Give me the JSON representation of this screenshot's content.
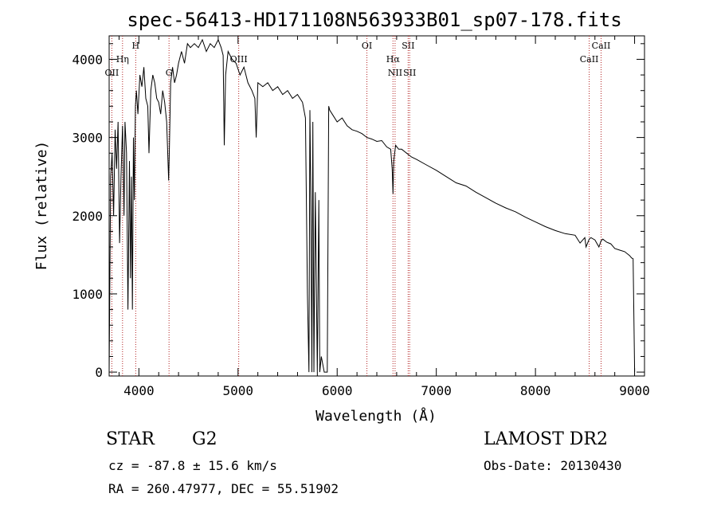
{
  "chart_data": {
    "type": "line",
    "title": "spec-56413-HD171108N563933B01_sp07-178.fits",
    "xlabel": "Wavelength (Å)",
    "ylabel": "Flux (relative)",
    "xlim": [
      3700,
      9100
    ],
    "ylim": [
      -50,
      4300
    ],
    "xticks": [
      4000,
      5000,
      6000,
      7000,
      8000,
      9000
    ],
    "yticks": [
      0,
      1000,
      2000,
      3000,
      4000
    ],
    "grid": false,
    "line_color": "#000000",
    "marker_color": "#b22222",
    "series": [
      {
        "x": [
          3700,
          3715,
          3730,
          3745,
          3760,
          3775,
          3790,
          3805,
          3820,
          3835,
          3850,
          3860,
          3875,
          3890,
          3905,
          3915,
          3925,
          3935,
          3945,
          3955,
          3965,
          3975,
          3990,
          4010,
          4030,
          4050,
          4070,
          4090,
          4102,
          4120,
          4140,
          4160,
          4180,
          4200,
          4220,
          4240,
          4260,
          4280,
          4300,
          4308,
          4320,
          4340,
          4360,
          4380,
          4400,
          4430,
          4460,
          4490,
          4520,
          4560,
          4600,
          4640,
          4680,
          4720,
          4760,
          4800,
          4830,
          4850,
          4861,
          4875,
          4900,
          4940,
          4980,
          5020,
          5060,
          5100,
          5140,
          5170,
          5183,
          5200,
          5250,
          5300,
          5350,
          5400,
          5450,
          5500,
          5550,
          5600,
          5650,
          5680,
          5700,
          5715,
          5725,
          5735,
          5745,
          5755,
          5765,
          5780,
          5800,
          5815,
          5825,
          5840,
          5870,
          5890,
          5900,
          5915,
          5925,
          5950,
          6000,
          6050,
          6100,
          6150,
          6200,
          6250,
          6300,
          6350,
          6400,
          6450,
          6500,
          6540,
          6555,
          6563,
          6570,
          6590,
          6620,
          6650,
          6700,
          6750,
          6800,
          6900,
          7000,
          7100,
          7200,
          7300,
          7400,
          7500,
          7600,
          7700,
          7800,
          7900,
          8000,
          8100,
          8200,
          8300,
          8400,
          8450,
          8498,
          8510,
          8542,
          8560,
          8600,
          8640,
          8662,
          8680,
          8720,
          8760,
          8800,
          8850,
          8900,
          8950,
          8970,
          8985,
          9000
        ],
        "y": [
          0,
          2500,
          2800,
          2000,
          3100,
          2600,
          3200,
          1650,
          2500,
          3150,
          2000,
          3200,
          2800,
          800,
          2700,
          1200,
          2500,
          800,
          3000,
          2200,
          3400,
          3600,
          3300,
          3800,
          3650,
          3900,
          3500,
          3400,
          2800,
          3600,
          3800,
          3700,
          3500,
          3450,
          3300,
          3600,
          3450,
          3200,
          2450,
          2900,
          3700,
          3900,
          3700,
          3800,
          3950,
          4100,
          3950,
          4200,
          4150,
          4200,
          4150,
          4250,
          4100,
          4200,
          4150,
          4250,
          4150,
          4050,
          2900,
          3800,
          4100,
          4000,
          3950,
          3800,
          3900,
          3700,
          3600,
          3500,
          3000,
          3700,
          3650,
          3700,
          3600,
          3650,
          3550,
          3600,
          3500,
          3550,
          3450,
          3250,
          1000,
          0,
          3350,
          2200,
          0,
          3200,
          0,
          2300,
          0,
          2200,
          0,
          200,
          0,
          0,
          0,
          3400,
          3350,
          3300,
          3200,
          3250,
          3150,
          3100,
          3080,
          3050,
          3000,
          2980,
          2950,
          2960,
          2880,
          2850,
          2600,
          2280,
          2700,
          2900,
          2850,
          2850,
          2800,
          2750,
          2720,
          2650,
          2580,
          2500,
          2420,
          2380,
          2300,
          2230,
          2160,
          2100,
          2050,
          1980,
          1920,
          1860,
          1810,
          1770,
          1750,
          1650,
          1720,
          1600,
          1700,
          1720,
          1690,
          1600,
          1680,
          1700,
          1660,
          1640,
          1580,
          1560,
          1540,
          1490,
          1460,
          1450,
          0
        ]
      }
    ],
    "line_markers": [
      {
        "label": "OII",
        "x": 3727,
        "row": 3
      },
      {
        "label": "Hη",
        "x": 3835,
        "row": 2
      },
      {
        "label": "H",
        "x": 3968,
        "row": 1
      },
      {
        "label": "G",
        "x": 4304,
        "row": 3
      },
      {
        "label": "OIII",
        "x": 5007,
        "row": 2
      },
      {
        "label": "OI",
        "x": 6300,
        "row": 1
      },
      {
        "label": "Hα",
        "x": 6563,
        "row": 2
      },
      {
        "label": "NII",
        "x": 6584,
        "row": 3
      },
      {
        "label": "SII",
        "x": 6716,
        "row": 1
      },
      {
        "label": "SII",
        "x": 6731,
        "row": 3
      },
      {
        "label": "CaII",
        "x": 8542,
        "row": 2
      },
      {
        "label": "CaII",
        "x": 8662,
        "row": 1
      }
    ]
  },
  "info": {
    "type_label": "STAR",
    "subclass": "G2",
    "survey": "LAMOST DR2",
    "cz": "cz = -87.8 ± 15.6 km/s",
    "obs_date": "Obs-Date: 20130430",
    "coords": "RA = 260.47977, DEC =  55.51902"
  }
}
